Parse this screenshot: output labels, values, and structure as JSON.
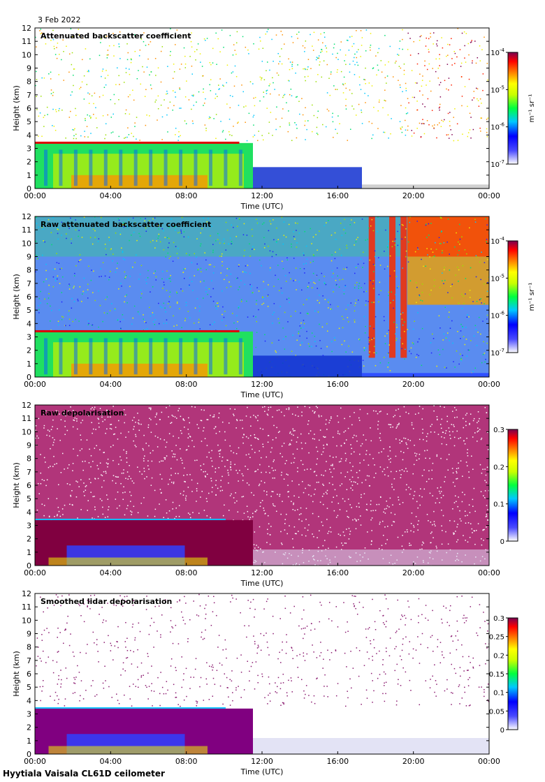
{
  "date": "3 Feb 2022",
  "footer": "Hyytiala Vaisala CL61D ceilometer",
  "chart_data": [
    {
      "type": "heatmap",
      "title": "Attenuated backscatter coefficient",
      "xlabel": "Time (UTC)",
      "ylabel": "Height (km)",
      "x_ticks": [
        "00:00",
        "04:00",
        "08:00",
        "12:00",
        "16:00",
        "20:00",
        "00:00"
      ],
      "y_ticks": [
        "0",
        "1",
        "2",
        "3",
        "4",
        "5",
        "6",
        "7",
        "8",
        "9",
        "10",
        "11",
        "12"
      ],
      "ylim": [
        0,
        12
      ],
      "colorbar": {
        "scale": "log",
        "ticks": [
          "10-7",
          "10-6",
          "10-5",
          "10-4"
        ],
        "unit": "m-1 sr-1"
      }
    },
    {
      "type": "heatmap",
      "title": "Raw attenuated backscatter coefficient",
      "xlabel": "Time (UTC)",
      "ylabel": "Height (km)",
      "x_ticks": [
        "00:00",
        "04:00",
        "08:00",
        "12:00",
        "16:00",
        "20:00",
        "00:00"
      ],
      "y_ticks": [
        "0",
        "1",
        "2",
        "3",
        "4",
        "5",
        "6",
        "7",
        "8",
        "9",
        "10",
        "11",
        "12"
      ],
      "ylim": [
        0,
        12
      ],
      "colorbar": {
        "scale": "log",
        "ticks": [
          "10-7",
          "10-6",
          "10-5",
          "10-4"
        ],
        "unit": "m-1 sr-1"
      }
    },
    {
      "type": "heatmap",
      "title": "Raw depolarisation",
      "xlabel": "Time (UTC)",
      "ylabel": "Height (km)",
      "x_ticks": [
        "00:00",
        "04:00",
        "08:00",
        "12:00",
        "16:00",
        "20:00",
        "00:00"
      ],
      "y_ticks": [
        "0",
        "1",
        "2",
        "3",
        "4",
        "5",
        "6",
        "7",
        "8",
        "9",
        "10",
        "11",
        "12"
      ],
      "ylim": [
        0,
        12
      ],
      "colorbar": {
        "scale": "linear",
        "ticks": [
          "0",
          "0.1",
          "0.2",
          "0.3"
        ],
        "unit": ""
      }
    },
    {
      "type": "heatmap",
      "title": "Smoothed lidar depolarisation",
      "xlabel": "Time (UTC)",
      "ylabel": "Height (km)",
      "x_ticks": [
        "00:00",
        "04:00",
        "08:00",
        "12:00",
        "16:00",
        "20:00",
        "00:00"
      ],
      "y_ticks": [
        "0",
        "1",
        "2",
        "3",
        "4",
        "5",
        "6",
        "7",
        "8",
        "9",
        "10",
        "11",
        "12"
      ],
      "ylim": [
        0,
        12
      ],
      "colorbar": {
        "scale": "linear",
        "ticks": [
          "0",
          "0.05",
          "0.1",
          "0.15",
          "0.2",
          "0.25",
          "0.3"
        ],
        "unit": ""
      }
    }
  ]
}
